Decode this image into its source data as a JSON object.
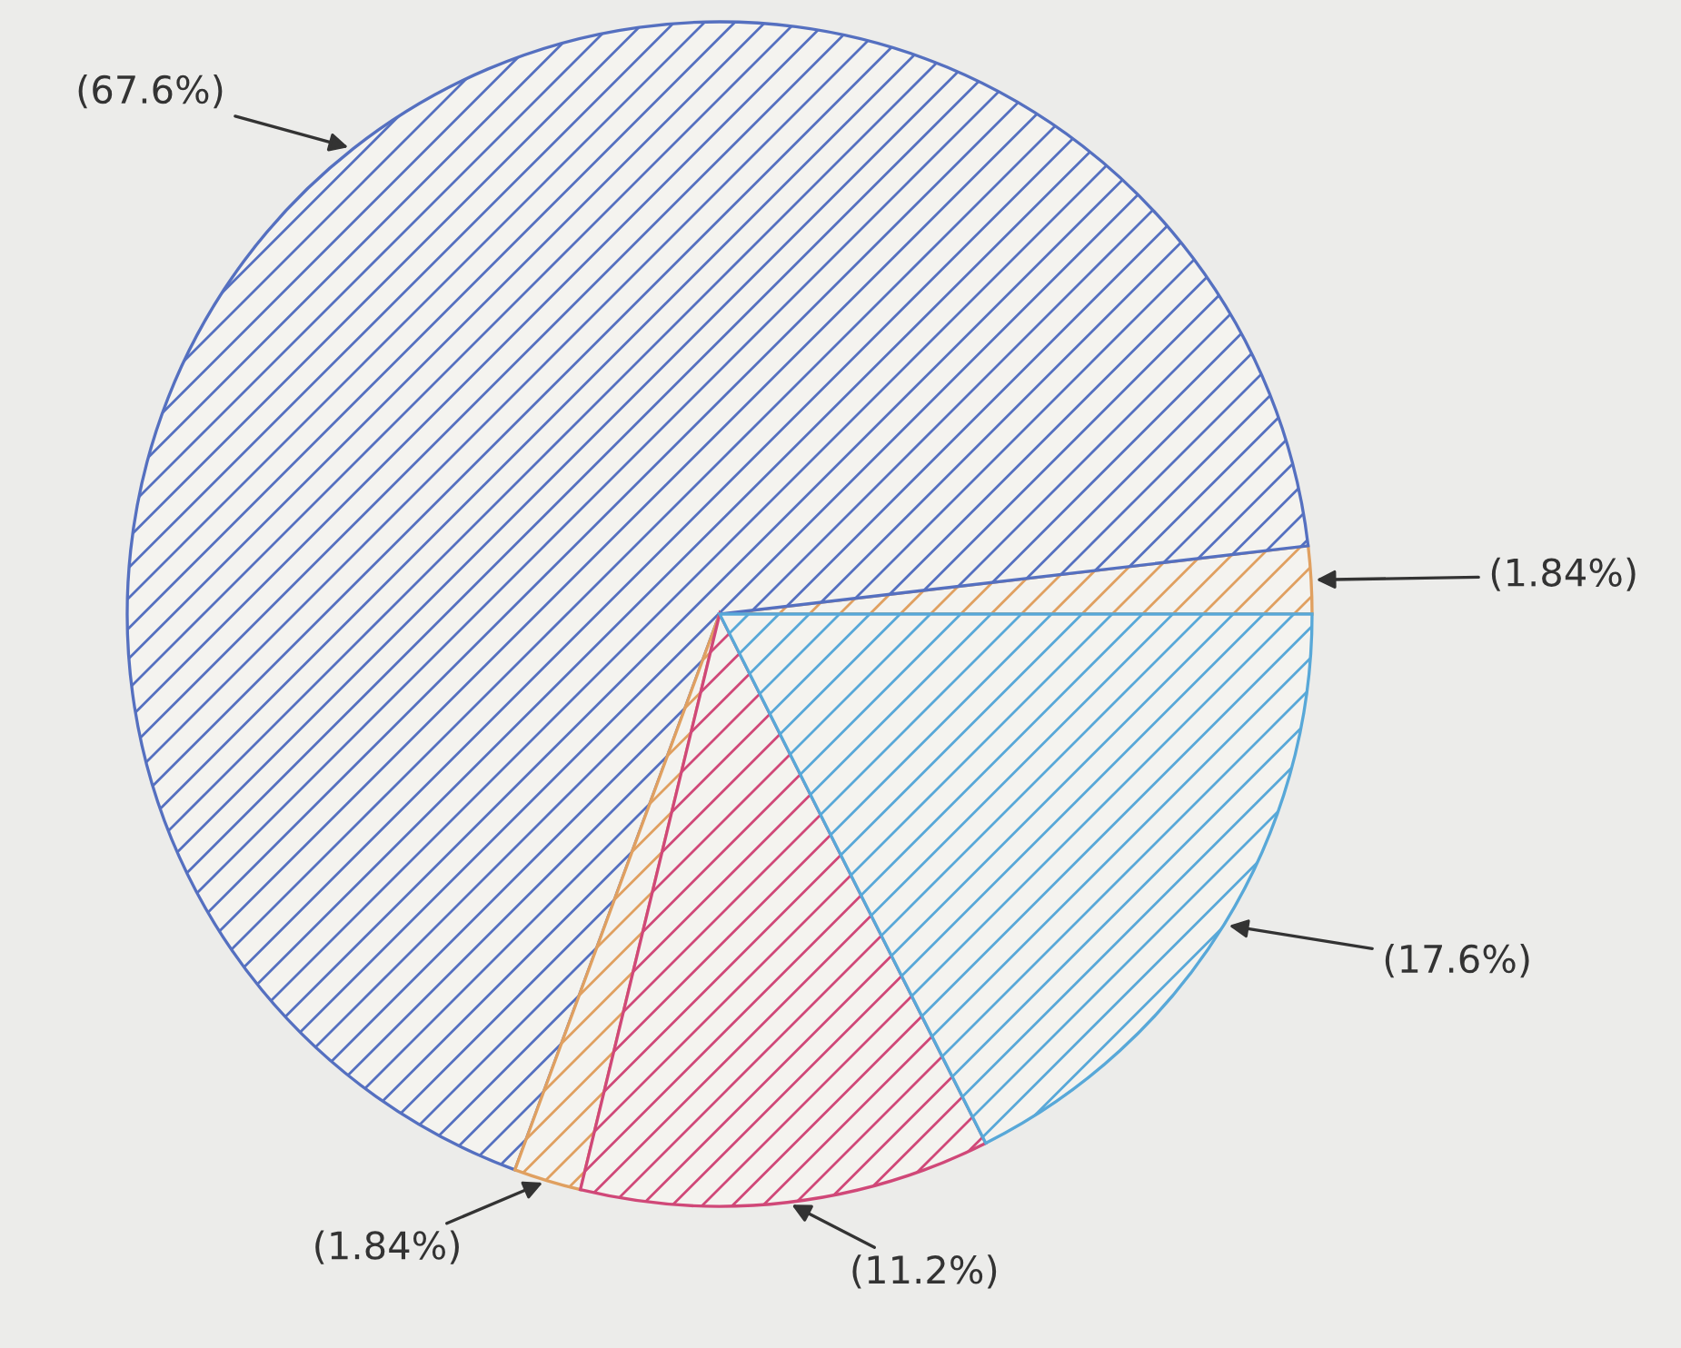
{
  "chart_data": {
    "type": "pie",
    "categories": [
      null,
      null,
      null,
      null,
      null
    ],
    "values": [
      1.84,
      67.6,
      1.84,
      11.2,
      17.6
    ],
    "colors": [
      "#e0a060",
      "#5570c0",
      "#e0a060",
      "#d04878",
      "#58a8d8"
    ],
    "value_labels": [
      "(1.84%)",
      "(67.6%)",
      "(1.84%)",
      "(11.2%)",
      "(17.6%)"
    ]
  }
}
